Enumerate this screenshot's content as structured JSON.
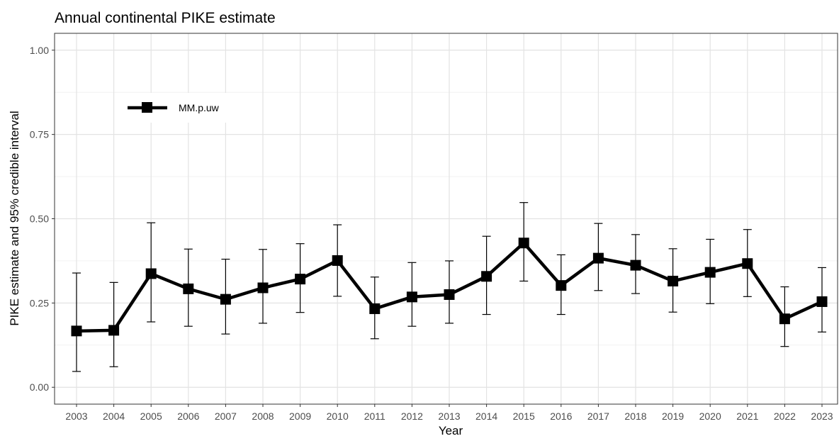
{
  "chart_data": {
    "type": "line",
    "title": "Annual continental PIKE estimate",
    "xlabel": "Year",
    "ylabel": "PIKE estimate and 95% credible interval",
    "ylim": [
      -0.05,
      1.05
    ],
    "yticks": [
      0.0,
      0.25,
      0.5,
      0.75,
      1.0
    ],
    "ytick_labels": [
      "0.00",
      "0.25",
      "0.50",
      "0.75",
      "1.00"
    ],
    "grid": true,
    "legend": {
      "placement": "top-left",
      "entries": [
        "MM.p.uw"
      ]
    },
    "categories": [
      "2003",
      "2004",
      "2005",
      "2006",
      "2007",
      "2008",
      "2009",
      "2010",
      "2011",
      "2012",
      "2013",
      "2014",
      "2015",
      "2016",
      "2017",
      "2018",
      "2019",
      "2020",
      "2021",
      "2022",
      "2023"
    ],
    "series": [
      {
        "name": "MM.p.uw",
        "color": "#000000",
        "marker": "square",
        "values": [
          0.167,
          0.169,
          0.337,
          0.292,
          0.261,
          0.295,
          0.321,
          0.376,
          0.233,
          0.268,
          0.275,
          0.329,
          0.428,
          0.302,
          0.383,
          0.362,
          0.315,
          0.341,
          0.367,
          0.203,
          0.254
        ],
        "lower": [
          0.047,
          0.061,
          0.194,
          0.181,
          0.158,
          0.19,
          0.222,
          0.27,
          0.144,
          0.181,
          0.19,
          0.216,
          0.315,
          0.216,
          0.287,
          0.278,
          0.223,
          0.248,
          0.269,
          0.121,
          0.164
        ],
        "upper": [
          0.339,
          0.311,
          0.488,
          0.41,
          0.38,
          0.409,
          0.426,
          0.482,
          0.327,
          0.37,
          0.375,
          0.448,
          0.548,
          0.393,
          0.486,
          0.453,
          0.411,
          0.439,
          0.468,
          0.298,
          0.355
        ]
      }
    ]
  }
}
